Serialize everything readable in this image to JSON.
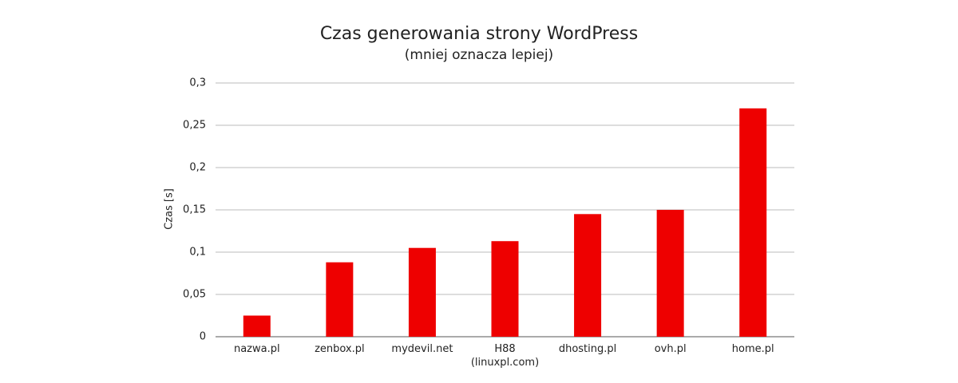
{
  "chart_data": {
    "type": "bar",
    "title": "Czas generowania strony WordPress",
    "subtitle": "(mniej oznacza lepiej)",
    "y_label": "Czas [s]",
    "categories": [
      "nazwa.pl",
      "zenbox.pl",
      "mydevil.net",
      "H88\n(linuxpl.com)",
      "dhosting.pl",
      "ovh.pl",
      "home.pl"
    ],
    "values": [
      0.025,
      0.088,
      0.105,
      0.113,
      0.145,
      0.15,
      0.27
    ],
    "color": "#ee0000",
    "ylim": [
      0,
      0.3
    ],
    "yticks": [
      0,
      {
        "value": 0.05,
        "label": "0,05"
      },
      {
        "value": 0.1,
        "label": "0,1"
      },
      {
        "value": 0.15,
        "label": "0,15"
      },
      {
        "value": 0.2,
        "label": "0,2"
      },
      {
        "value": 0.25,
        "label": "0,25"
      },
      {
        "value": 0.3,
        "label": "0,3"
      }
    ],
    "grid": true
  }
}
